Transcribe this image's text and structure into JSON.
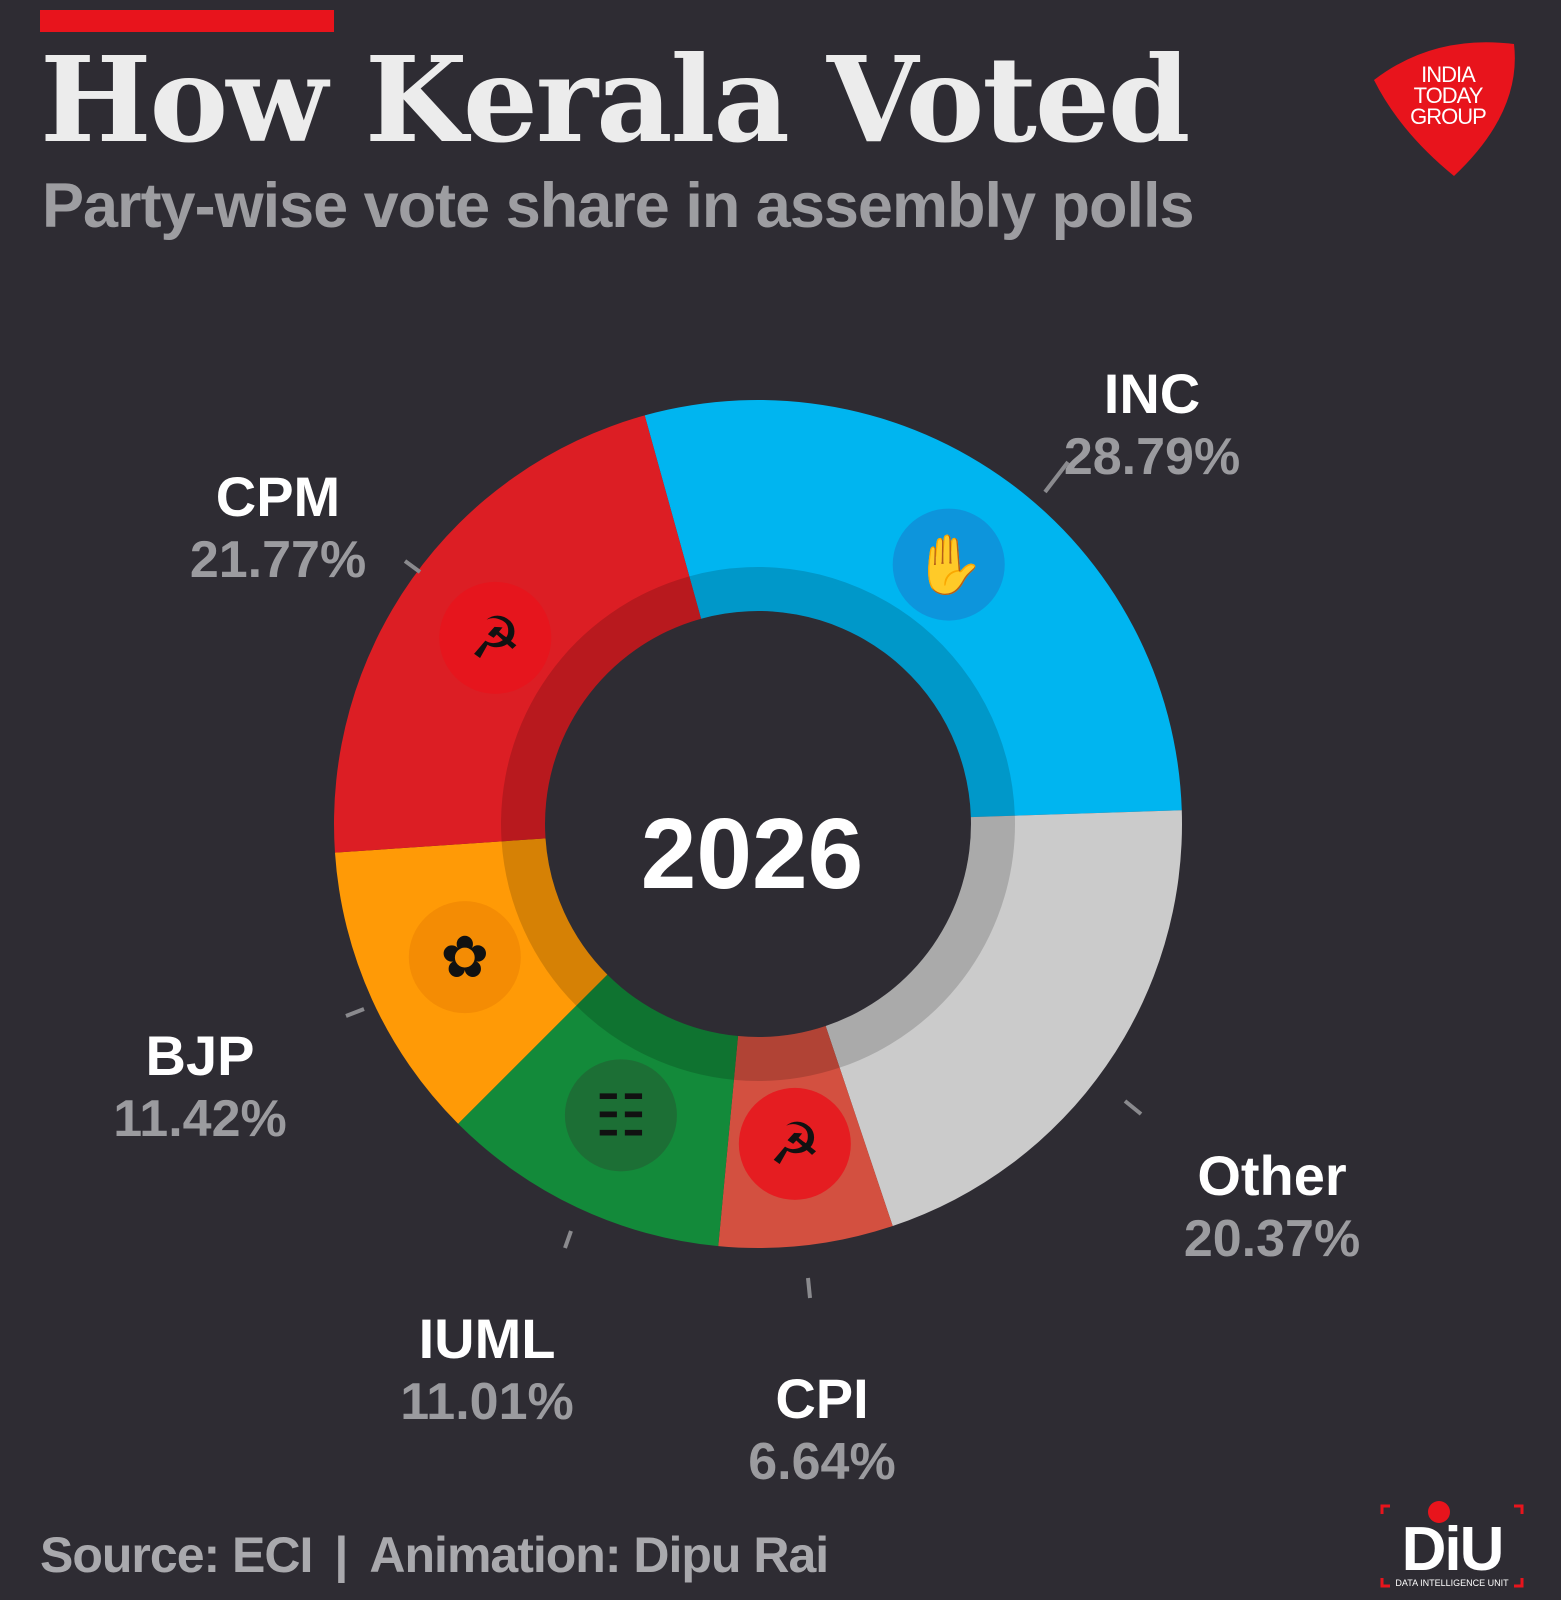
{
  "header": {
    "title": "How Kerala Voted",
    "subtitle": "Party-wise vote share in assembly polls",
    "accent_color": "#e8141c"
  },
  "logo": {
    "lines": [
      "INDIA",
      "TODAY",
      "GROUP"
    ],
    "color": "#e8141c"
  },
  "footer": {
    "source": "Source: ECI",
    "separator": "|",
    "credit": "Animation: Dipu Rai",
    "unit_logo_text": "DiU",
    "unit_logo_subtext": "DATA INTELLIGENCE UNIT"
  },
  "chart_data": {
    "type": "pie",
    "center_label": "2026",
    "unit": "%",
    "slices": [
      {
        "label": "INC",
        "value": 28.79,
        "display": "28.79%",
        "color": "#00b5f0",
        "icon": "hand-icon"
      },
      {
        "label": "Other",
        "value": 20.37,
        "display": "20.37%",
        "color": "#cbcbcb",
        "icon": ""
      },
      {
        "label": "CPI",
        "value": 6.64,
        "display": "6.64%",
        "color": "#d35040",
        "icon": "ears-sickle-icon"
      },
      {
        "label": "IUML",
        "value": 11.01,
        "display": "11.01%",
        "color": "#138a3a",
        "icon": "ladder-icon"
      },
      {
        "label": "BJP",
        "value": 11.42,
        "display": "11.42%",
        "color": "#ff9a06",
        "icon": "lotus-icon"
      },
      {
        "label": "CPM",
        "value": 21.77,
        "display": "21.77%",
        "color": "#dc1e24",
        "icon": "hammer-sickle-icon"
      }
    ]
  }
}
